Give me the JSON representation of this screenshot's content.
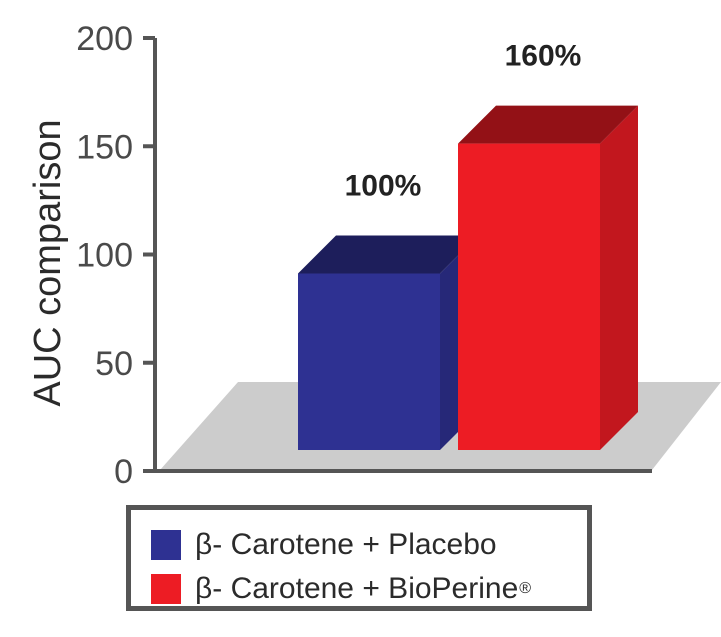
{
  "chart_data": {
    "type": "bar",
    "ylabel": "AUC comparison",
    "xlabel": "",
    "ylim": [
      0,
      200
    ],
    "yticks": [
      0,
      50,
      100,
      150,
      200
    ],
    "grid": false,
    "three_d": true,
    "categories": [
      "β- Carotene + Placebo",
      "β- Carotene + BioPerine"
    ],
    "series": [
      {
        "name": "β- Carotene + Placebo",
        "value": 100,
        "label": "100%",
        "color": "#2e3192"
      },
      {
        "name": "β- Carotene + BioPerine",
        "value": 160,
        "label": "160%",
        "color": "#ed1c24"
      }
    ],
    "legend": {
      "placement": "bottom",
      "items": [
        {
          "text": "β- Carotene + Placebo",
          "sup": "",
          "color": "#2e3192"
        },
        {
          "text": "β- Carotene + BioPerine",
          "sup": "®",
          "color": "#ed1c24"
        }
      ]
    }
  }
}
